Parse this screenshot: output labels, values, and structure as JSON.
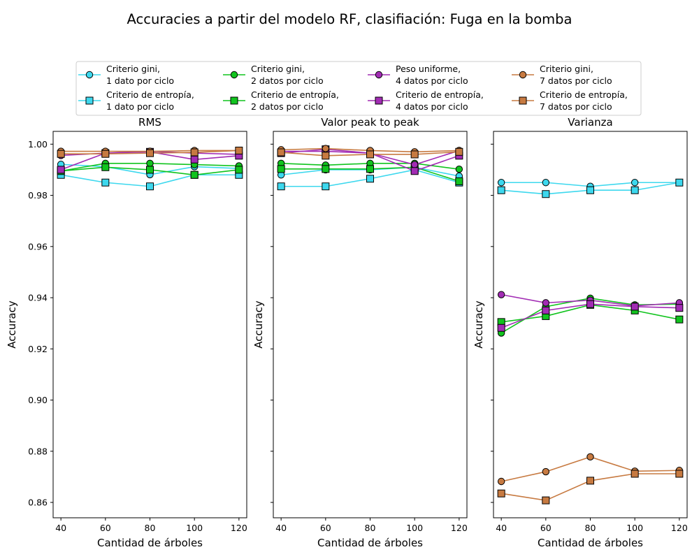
{
  "figure": {
    "title": "Accuracies a partir del modelo RF, clasifiación: Fuga en la bomba"
  },
  "chart_data": {
    "type": "line",
    "x": [
      40,
      60,
      80,
      100,
      120
    ],
    "xlabel": "Cantidad de árboles",
    "ylabel": "Accuracy",
    "xticks": [
      "40",
      "60",
      "80",
      "100",
      "120"
    ],
    "yticks": [
      "0.86",
      "0.88",
      "0.90",
      "0.92",
      "0.94",
      "0.96",
      "0.98",
      "1.00"
    ],
    "xlim": [
      36.5,
      123.5
    ],
    "ylim": [
      0.854,
      1.005
    ],
    "grid": false,
    "legend_placement": "top-center",
    "legend": [
      {
        "label_line1": "Criterio gini,",
        "label_line2": "1 dato por ciclo",
        "color": "#3dd8ee",
        "marker": "circle"
      },
      {
        "label_line1": "Criterio de entropía,",
        "label_line2": "1 dato por ciclo",
        "color": "#3dd8ee",
        "marker": "square"
      },
      {
        "label_line1": "Criterio gini,",
        "label_line2": " 2 datos por ciclo",
        "color": "#11c41e",
        "marker": "circle"
      },
      {
        "label_line1": "Criterio de entropía,",
        "label_line2": "2 datos por ciclo",
        "color": "#11c41e",
        "marker": "square"
      },
      {
        "label_line1": "Peso uniforme,",
        "label_line2": "4 datos por ciclo",
        "color": "#a22cb4",
        "marker": "circle"
      },
      {
        "label_line1": "Criterio de entropía,",
        "label_line2": "4 datos por ciclo",
        "color": "#a22cb4",
        "marker": "square"
      },
      {
        "label_line1": "Criterio gini,",
        "label_line2": "7 datos por ciclo",
        "color": "#c77a41",
        "marker": "circle"
      },
      {
        "label_line1": "Criterio de entropía,",
        "label_line2": "7 datos por ciclo",
        "color": "#c77a41",
        "marker": "square"
      }
    ],
    "panels": [
      {
        "title": "RMS",
        "series": [
          {
            "color": "#3dd8ee",
            "marker": "circle",
            "values": [
              0.9921,
              0.9912,
              0.9881,
              0.9912,
              0.9905
            ]
          },
          {
            "color": "#3dd8ee",
            "marker": "square",
            "values": [
              0.988,
              0.985,
              0.9835,
              0.988,
              0.988
            ]
          },
          {
            "color": "#11c41e",
            "marker": "circle",
            "values": [
              0.9895,
              0.9925,
              0.9925,
              0.992,
              0.9915
            ]
          },
          {
            "color": "#11c41e",
            "marker": "square",
            "values": [
              0.9895,
              0.991,
              0.99,
              0.988,
              0.99
            ]
          },
          {
            "color": "#a22cb4",
            "marker": "circle",
            "values": [
              0.9956,
              0.9965,
              0.9972,
              0.9965,
              0.996
            ]
          },
          {
            "color": "#a22cb4",
            "marker": "square",
            "values": [
              0.99,
              0.9965,
              0.997,
              0.994,
              0.9955
            ]
          },
          {
            "color": "#c77a41",
            "marker": "circle",
            "values": [
              0.9972,
              0.9972,
              0.9972,
              0.9975,
              0.9975
            ]
          },
          {
            "color": "#c77a41",
            "marker": "square",
            "values": [
              0.9962,
              0.9962,
              0.9965,
              0.9968,
              0.9975
            ]
          }
        ]
      },
      {
        "title": "Valor peak to peak",
        "series": [
          {
            "color": "#3dd8ee",
            "marker": "circle",
            "values": [
              0.988,
              0.99,
              0.99,
              0.991,
              0.9875
            ]
          },
          {
            "color": "#3dd8ee",
            "marker": "square",
            "values": [
              0.9835,
              0.9835,
              0.9865,
              0.99,
              0.985
            ]
          },
          {
            "color": "#11c41e",
            "marker": "circle",
            "values": [
              0.9925,
              0.9918,
              0.9925,
              0.9925,
              0.9902
            ]
          },
          {
            "color": "#11c41e",
            "marker": "square",
            "values": [
              0.9903,
              0.9903,
              0.9903,
              0.991,
              0.9855
            ]
          },
          {
            "color": "#a22cb4",
            "marker": "circle",
            "values": [
              0.9972,
              0.9972,
              0.9965,
              0.992,
              0.9975
            ]
          },
          {
            "color": "#a22cb4",
            "marker": "square",
            "values": [
              0.9965,
              0.998,
              0.9965,
              0.9895,
              0.9955
            ]
          },
          {
            "color": "#c77a41",
            "marker": "circle",
            "values": [
              0.9978,
              0.9983,
              0.9975,
              0.997,
              0.9975
            ]
          },
          {
            "color": "#c77a41",
            "marker": "square",
            "values": [
              0.9968,
              0.9955,
              0.996,
              0.996,
              0.997
            ]
          }
        ]
      },
      {
        "title": "Varianza",
        "series": [
          {
            "color": "#3dd8ee",
            "marker": "circle",
            "values": [
              0.985,
              0.985,
              0.9835,
              0.985,
              0.985
            ]
          },
          {
            "color": "#3dd8ee",
            "marker": "square",
            "values": [
              0.982,
              0.9805,
              0.982,
              0.982,
              0.985
            ]
          },
          {
            "color": "#11c41e",
            "marker": "circle",
            "values": [
              0.9262,
              0.9365,
              0.9398,
              0.9372,
              0.9375
            ]
          },
          {
            "color": "#11c41e",
            "marker": "square",
            "values": [
              0.9305,
              0.9328,
              0.9372,
              0.935,
              0.9315
            ]
          },
          {
            "color": "#a22cb4",
            "marker": "circle",
            "values": [
              0.9412,
              0.938,
              0.939,
              0.9368,
              0.938
            ]
          },
          {
            "color": "#a22cb4",
            "marker": "square",
            "values": [
              0.9282,
              0.935,
              0.9375,
              0.9365,
              0.936
            ]
          },
          {
            "color": "#c77a41",
            "marker": "circle",
            "values": [
              0.8682,
              0.872,
              0.8778,
              0.8722,
              0.8725
            ]
          },
          {
            "color": "#c77a41",
            "marker": "square",
            "values": [
              0.8635,
              0.8608,
              0.8685,
              0.8712,
              0.8712
            ]
          }
        ]
      }
    ]
  }
}
